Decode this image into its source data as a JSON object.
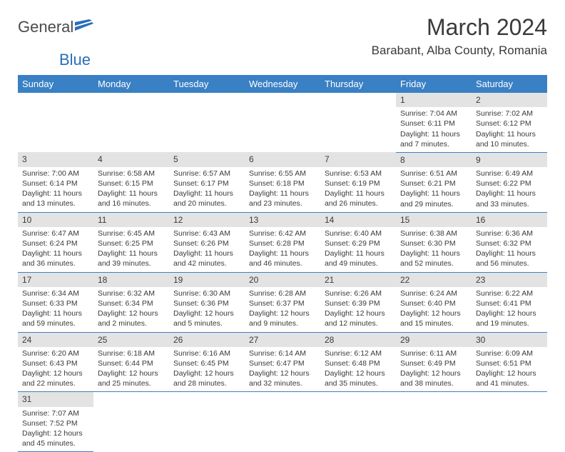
{
  "logo": {
    "part1": "General",
    "part2": "Blue"
  },
  "title": "March 2024",
  "location": "Barabant, Alba County, Romania",
  "colors": {
    "header_bg": "#3a80c4",
    "header_fg": "#ffffff",
    "daynum_bg": "#e3e3e3",
    "text": "#3a3a3a",
    "logo_blue": "#2a6db8",
    "row_border": "#3a80c4"
  },
  "daynames": [
    "Sunday",
    "Monday",
    "Tuesday",
    "Wednesday",
    "Thursday",
    "Friday",
    "Saturday"
  ],
  "weeks": [
    [
      null,
      null,
      null,
      null,
      null,
      {
        "d": "1",
        "sr": "7:04 AM",
        "ss": "6:11 PM",
        "dl": "11 hours and 7 minutes."
      },
      {
        "d": "2",
        "sr": "7:02 AM",
        "ss": "6:12 PM",
        "dl": "11 hours and 10 minutes."
      }
    ],
    [
      {
        "d": "3",
        "sr": "7:00 AM",
        "ss": "6:14 PM",
        "dl": "11 hours and 13 minutes."
      },
      {
        "d": "4",
        "sr": "6:58 AM",
        "ss": "6:15 PM",
        "dl": "11 hours and 16 minutes."
      },
      {
        "d": "5",
        "sr": "6:57 AM",
        "ss": "6:17 PM",
        "dl": "11 hours and 20 minutes."
      },
      {
        "d": "6",
        "sr": "6:55 AM",
        "ss": "6:18 PM",
        "dl": "11 hours and 23 minutes."
      },
      {
        "d": "7",
        "sr": "6:53 AM",
        "ss": "6:19 PM",
        "dl": "11 hours and 26 minutes."
      },
      {
        "d": "8",
        "sr": "6:51 AM",
        "ss": "6:21 PM",
        "dl": "11 hours and 29 minutes."
      },
      {
        "d": "9",
        "sr": "6:49 AM",
        "ss": "6:22 PM",
        "dl": "11 hours and 33 minutes."
      }
    ],
    [
      {
        "d": "10",
        "sr": "6:47 AM",
        "ss": "6:24 PM",
        "dl": "11 hours and 36 minutes."
      },
      {
        "d": "11",
        "sr": "6:45 AM",
        "ss": "6:25 PM",
        "dl": "11 hours and 39 minutes."
      },
      {
        "d": "12",
        "sr": "6:43 AM",
        "ss": "6:26 PM",
        "dl": "11 hours and 42 minutes."
      },
      {
        "d": "13",
        "sr": "6:42 AM",
        "ss": "6:28 PM",
        "dl": "11 hours and 46 minutes."
      },
      {
        "d": "14",
        "sr": "6:40 AM",
        "ss": "6:29 PM",
        "dl": "11 hours and 49 minutes."
      },
      {
        "d": "15",
        "sr": "6:38 AM",
        "ss": "6:30 PM",
        "dl": "11 hours and 52 minutes."
      },
      {
        "d": "16",
        "sr": "6:36 AM",
        "ss": "6:32 PM",
        "dl": "11 hours and 56 minutes."
      }
    ],
    [
      {
        "d": "17",
        "sr": "6:34 AM",
        "ss": "6:33 PM",
        "dl": "11 hours and 59 minutes."
      },
      {
        "d": "18",
        "sr": "6:32 AM",
        "ss": "6:34 PM",
        "dl": "12 hours and 2 minutes."
      },
      {
        "d": "19",
        "sr": "6:30 AM",
        "ss": "6:36 PM",
        "dl": "12 hours and 5 minutes."
      },
      {
        "d": "20",
        "sr": "6:28 AM",
        "ss": "6:37 PM",
        "dl": "12 hours and 9 minutes."
      },
      {
        "d": "21",
        "sr": "6:26 AM",
        "ss": "6:39 PM",
        "dl": "12 hours and 12 minutes."
      },
      {
        "d": "22",
        "sr": "6:24 AM",
        "ss": "6:40 PM",
        "dl": "12 hours and 15 minutes."
      },
      {
        "d": "23",
        "sr": "6:22 AM",
        "ss": "6:41 PM",
        "dl": "12 hours and 19 minutes."
      }
    ],
    [
      {
        "d": "24",
        "sr": "6:20 AM",
        "ss": "6:43 PM",
        "dl": "12 hours and 22 minutes."
      },
      {
        "d": "25",
        "sr": "6:18 AM",
        "ss": "6:44 PM",
        "dl": "12 hours and 25 minutes."
      },
      {
        "d": "26",
        "sr": "6:16 AM",
        "ss": "6:45 PM",
        "dl": "12 hours and 28 minutes."
      },
      {
        "d": "27",
        "sr": "6:14 AM",
        "ss": "6:47 PM",
        "dl": "12 hours and 32 minutes."
      },
      {
        "d": "28",
        "sr": "6:12 AM",
        "ss": "6:48 PM",
        "dl": "12 hours and 35 minutes."
      },
      {
        "d": "29",
        "sr": "6:11 AM",
        "ss": "6:49 PM",
        "dl": "12 hours and 38 minutes."
      },
      {
        "d": "30",
        "sr": "6:09 AM",
        "ss": "6:51 PM",
        "dl": "12 hours and 41 minutes."
      }
    ],
    [
      {
        "d": "31",
        "sr": "7:07 AM",
        "ss": "7:52 PM",
        "dl": "12 hours and 45 minutes."
      },
      null,
      null,
      null,
      null,
      null,
      null
    ]
  ],
  "labels": {
    "sunrise": "Sunrise: ",
    "sunset": "Sunset: ",
    "daylight": "Daylight: "
  }
}
